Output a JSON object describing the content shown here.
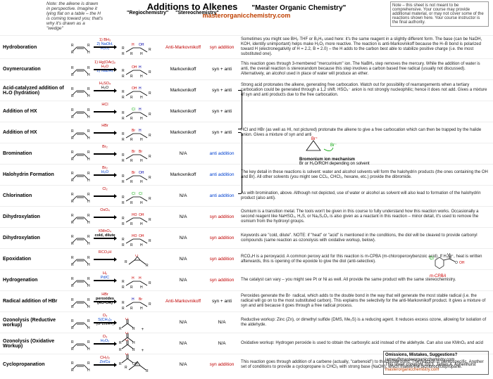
{
  "header": {
    "note_left": "Note: the alkene is drawn in perspective. Imagine it lying flat on a table – the H is coming toward you; that's why it's drawn as a \"wedge\"",
    "main_title": "Additions to Alkenes",
    "brand_title": "\"Master Organic Chemistry\"",
    "brand_link": "masterorganicchemistry.com",
    "note_right": "Note – this sheet is not meant to be comprehensive. Your course may provide additional material, or may not cover some of the reactions shown here. Your course instructor is the final authority.",
    "col_regio": "\"Regiochemistry\"",
    "col_stereo": "\"Stereochemistry\""
  },
  "colors": {
    "anti_mark": "#c00000",
    "mark": "#000000",
    "syn": "#c00000",
    "anti": "#0040d0",
    "na": "#000000",
    "reagent_step1": "#c00000",
    "reagent_step2": "#0040d0"
  },
  "reactions": [
    {
      "name": "Hydroboration",
      "reagents_html": "<span class='red'>1) BH₃</span><br><span class='blue'>2) NaOH,<br>H₂O₂</span>",
      "regio": "Anti-Markovnikoff",
      "regio_class": "red",
      "stereo": "syn addition",
      "stereo_class": "red",
      "notes": "Sometimes you might see BH₃·THF or B₂H₆ used here: it's the same reagent in a slightly different form. The base (can be NaOH, KOH, identity unimportant) helps make H₂O₂ more reactive. The reaction is anti-Markovnikoff because the H–B bond is polarized toward H (electronegativity of H = 2.2, B = 2.0) – the H adds to the carbon best able to stabilize positive charge (i.e. the most substituted one)."
    },
    {
      "name": "Oxymercuration",
      "reagents_html": "<span class='red'>1) Hg(OAc)₂<br>H₂O</span><br><span class='blue'>2) NaBH₄</span>",
      "regio": "Markovnikoff",
      "regio_class": "black",
      "stereo": "syn + anti",
      "stereo_class": "black",
      "notes": "This reaction goes through 3-membered \"mercurinium\" ion. The NaBH₄ step removes the mercury. While the addition of water is anti, the overall reaction is stereorandom because this step involves a carbon based free radical (usually not discussed). Alternatively, an alcohol used in place of water will produce an ether."
    },
    {
      "name": "Acid-catalyzed addition of H₂O (hydration)",
      "reagents_html": "<span class='red'>H₂SO₄</span><br>H₂O",
      "regio": "Markovnikoff",
      "regio_class": "black",
      "stereo": "syn + anti",
      "stereo_class": "black",
      "notes": "Strong acid protonates the alkene, generating free carbocation. Watch out for possibility of rearrangements when a tertiary carbocation could be generated through a 1,2 shift. HSO₄⁻ anion is not strongly nucleophilic; hence it does not add. Gives a mixture of syn and anti products due to the free carbocation."
    },
    {
      "name": "Addition of HX",
      "reagents_html": "<span class='red'>HCl</span>",
      "regio": "Markovnikoff",
      "regio_class": "black",
      "stereo": "syn + anti",
      "stereo_class": "black",
      "notes": ""
    },
    {
      "name": "Addition of HX",
      "reagents_html": "<span class='red'>HBr</span>",
      "regio": "Markovnikoff",
      "regio_class": "black",
      "stereo": "syn + anti",
      "stereo_class": "black",
      "notes": "HCl and HBr (as well as HI, not pictured) protonate the alkene to give a free carbocation which can then be trapped by the halide anion. Gives a mixture of syn and anti"
    },
    {
      "name": "Bromination",
      "reagents_html": "<span class='red'>Br₂</span>",
      "regio": "N/A",
      "regio_class": "black",
      "stereo": "anti addition",
      "stereo_class": "blue",
      "notes": ""
    },
    {
      "name": "Halohydrin Formation",
      "reagents_html": "<span class='red'>Br₂</span><br><span class='blue'>H₂O</span>",
      "regio": "Markovnikoff",
      "regio_class": "black",
      "stereo": "anti addition",
      "stereo_class": "blue",
      "notes": "The key detail in these reactions is solvent: water and alcohol solvents will form the halohydrin products (the ones containing the OH and Br). All other solvents (you might see CCl₄, CHCl₃, hexane, etc.) provide the dibromide."
    },
    {
      "name": "Chlorination",
      "reagents_html": "<span class='red'>Cl₂</span>",
      "regio": "N/A",
      "regio_class": "black",
      "stereo": "anti addition",
      "stereo_class": "blue",
      "notes": "As with bromination, above. Although not depicted, use of water or alcohol as solvent will also lead to formation of the halohydrin product (also anti)."
    },
    {
      "name": "Dihydroxylation",
      "reagents_html": "<span class='red'>OsO₄</span>",
      "regio": "N/A",
      "regio_class": "black",
      "stereo": "syn addition",
      "stereo_class": "red",
      "notes": "Osmium is a transition metal. The tools won't be given in this course to fully understand how this reaction works. Occasionally a second reagent like NaHSO₃, H₂S, or Na₂S₂O₃ is also given as a reactant in this reaction – minor detail, it's used to remove the osmium from the hydroxyl groups."
    },
    {
      "name": "Dihydroxylation",
      "reagents_html": "<span class='red'>KMnO₄</span><br><b>cold, dilute</b>",
      "regio": "N/A",
      "regio_class": "black",
      "stereo": "syn addition",
      "stereo_class": "red",
      "notes": "Keywords are \"cold, dilute\". NOTE: if \"heat\" or \"acid\" is mentioned in the conditions, the diol will be cleaved to provide carbonyl compounds (same reaction as ozonolysis with oxidative workup, below)."
    },
    {
      "name": "Epoxidation",
      "reagents_html": "<span class='red'>RCO₃H</span>",
      "regio": "N/A",
      "regio_class": "black",
      "stereo": "syn addition",
      "stereo_class": "red",
      "notes": "RCO₃H is a peroxyacid. A common peroxy acid for this reaction is m-CPBA (m-chloroperoxybenzoic acid). If H₃O⁺, heat is written afterwards, this is opening of the epoxide to give the diol (anti-selective)."
    },
    {
      "name": "Hydrogenation",
      "reagents_html": "<span class='red'>H₂</span><br><span class='blue'>Pd/C</span>",
      "regio": "N/A",
      "regio_class": "black",
      "stereo": "syn addition",
      "stereo_class": "red",
      "notes": "The catalyst can vary – you might see Pt or Ni as well. All provide the same product with the same stereochemistry."
    },
    {
      "name": "Radical addition of HBr",
      "reagents_html": "<span class='red'>HBr</span><br><b>peroxides<br>(RO-OR)</b>",
      "regio": "Anti-Markovnikoff",
      "regio_class": "red",
      "stereo": "syn + anti",
      "stereo_class": "black",
      "notes": "Peroxides generate the Br· radical, which adds to the double bond in the way that will generate the most stable radical (i.e. the radical will go on to the most substituted carbon). This explains the selectivity for the anti-Markovnikoff product. It gives a mixture of syn and anti because it goes through a free radical process."
    },
    {
      "name": "Ozonolysis (Reductive workup)",
      "reagents_html": "<span class='red'>O₃</span><br><span class='blue'>S(CH₃)₂</span><br>(or Zn/H+)",
      "regio": "N/A",
      "regio_class": "black",
      "stereo": "N/A",
      "stereo_class": "black",
      "notes": "Reductive workup: Zinc (Zn), or dimethyl sulfide (DMS, Me₂S) is a reducing agent. It reduces excess ozone, allowing for isolation of the aldehyde."
    },
    {
      "name": "Ozonolysis (Oxidative Workup)",
      "reagents_html": "<span class='red'>O₃</span><br><span class='blue'>H₂O₂</span>",
      "regio": "N/A",
      "regio_class": "black",
      "stereo": "N/A",
      "stereo_class": "black",
      "notes": "Oxidative workup: Hydrogen peroxide is used to obtain the carboxylic acid instead of the aldehyde. Can also use KMnO₄ and acid"
    },
    {
      "name": "Cyclopropanation",
      "reagents_html": "<span class='red'>CH₂I₂</span><br><span class='blue'>Zn/Cu</span>",
      "regio": "N/A",
      "regio_class": "black",
      "stereo": "syn addition",
      "stereo_class": "red",
      "notes": "This reaction goes through addition of a carbene (actually, \"carbenoid\") to the double bond. The reaction is stereospecific. Another set of conditions to provide a cyclopropane is CHCl₃ with strong base (NaOH), which makes the dichlorocyclopropane."
    }
  ],
  "bromonium": {
    "title": "Bromonium ion mechanism",
    "sub": "Br or H₂O/ROH depending on solvent"
  },
  "mcpba_label": "m-CPBA",
  "footer": {
    "heading": "Omissions, Mistakes, Suggestions?",
    "email": "james@masterorganicchemistry.com",
    "copy": "This sheet copyright 2013, James A. Ashenhurst",
    "link": "masterorganicchemistry.com"
  }
}
